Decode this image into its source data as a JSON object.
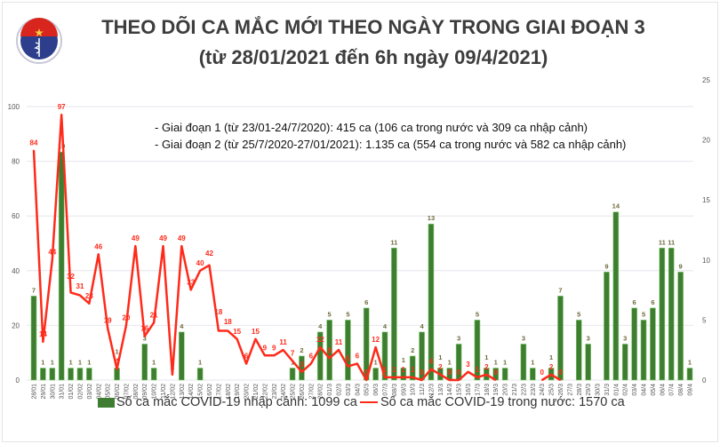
{
  "header": {
    "title_line1": "THEO DÕI CA MẮC MỚI THEO NGÀY TRONG GIAI ĐOẠN 3",
    "title_line2": "(từ 28/01/2021 đến 6h ngày 09/4/2021)",
    "logo_text": "BỘ Y TẾ MINISTRY OF HEALTH"
  },
  "notes": [
    "- Giai đoạn 1 (từ 23/01-24/7/2020): 415 ca (106 ca trong nước và 309 ca nhập cảnh)",
    "- Giai đoạn 2 (từ 25/7/2020-27/01/2021): 1.135 ca (554 ca trong nước và 582 ca nhập cảnh)"
  ],
  "legend": {
    "imported": "Số ca mắc COVID-19 nhập cảnh: 1099 ca",
    "domestic": "Số ca mắc COVID-19 trong nước: 1570 ca"
  },
  "colors": {
    "imported": "#3f7d32",
    "domestic": "#ff2a1a",
    "imported_label": "#6e6a3c",
    "grid": "#e6e6ee"
  },
  "chart_data": {
    "type": "bar+line",
    "title": "THEO DÕI CA MẮC MỚI THEO NGÀY TRONG GIAI ĐOẠN 3",
    "grid": true,
    "legend_position": "bottom",
    "left_axis": {
      "ylim": [
        0,
        100
      ],
      "ticks": [
        "0",
        "20",
        "40",
        "60",
        "80",
        "100"
      ]
    },
    "right_axis": {
      "ylim": [
        0,
        25
      ],
      "ticks": [
        "0",
        "5",
        "10",
        "15",
        "20",
        "25"
      ]
    },
    "categories": [
      "28/01",
      "29/01",
      "30/01",
      "31/01",
      "01/02",
      "02/02",
      "03/02",
      "04/02",
      "05/02",
      "06/02",
      "07/02",
      "08/02",
      "09/02",
      "10/02",
      "11/02",
      "12/02",
      "13/02",
      "14/02",
      "15/02",
      "16/02",
      "17/02",
      "18/02",
      "19/02",
      "20/02",
      "21/02",
      "22/02",
      "23/02",
      "24/02",
      "25/02",
      "26/02",
      "27/02",
      "28/02",
      "01/3",
      "02/3",
      "03/3",
      "04/3",
      "05/3",
      "06/3",
      "07/3",
      "08/3",
      "09/3",
      "10/3",
      "11/3",
      "12/3",
      "13/3",
      "14/3",
      "15/3",
      "16/3",
      "17/3",
      "18/3",
      "19/3",
      "20/3",
      "21/3",
      "22/3",
      "23/3",
      "24/3",
      "25/3",
      "26/3",
      "27/3",
      "28/3",
      "29/3",
      "30/3",
      "31/3",
      "01/4",
      "02/4",
      "03/4",
      "04/4",
      "05/4",
      "06/4",
      "07/4",
      "08/4",
      "09/4"
    ],
    "series": [
      {
        "name": "Số ca mắc COVID-19 nhập cảnh: 1099 ca",
        "type": "bar",
        "axis": "right",
        "values": [
          7,
          1,
          1,
          19,
          1,
          1,
          1,
          0,
          0,
          1,
          0,
          0,
          3,
          1,
          0,
          0,
          4,
          0,
          1,
          0,
          0,
          0,
          0,
          0,
          0,
          0,
          0,
          0,
          1,
          2,
          0,
          4,
          5,
          0,
          5,
          0,
          6,
          1,
          4,
          11,
          1,
          2,
          4,
          13,
          1,
          1,
          3,
          0,
          5,
          1,
          1,
          1,
          0,
          3,
          1,
          0,
          1,
          7,
          0,
          5,
          3,
          0,
          9,
          14,
          3,
          6,
          5,
          6,
          11,
          11,
          9,
          1
        ]
      },
      {
        "name": "Số ca mắc COVID-19 trong nước: 1570 ca",
        "type": "line",
        "axis": "left",
        "values": [
          84,
          14,
          44,
          97,
          32,
          31,
          28,
          46,
          19,
          4,
          20,
          49,
          16,
          21,
          49,
          2,
          49,
          33,
          40,
          42,
          18,
          18,
          15,
          6,
          15,
          9,
          9,
          11,
          7,
          3,
          6,
          12,
          8,
          11,
          5,
          6,
          0,
          12,
          1,
          1,
          1,
          1,
          0,
          4,
          2,
          0,
          0,
          3,
          1,
          2,
          0,
          null,
          null,
          null,
          null,
          0,
          2,
          0,
          null,
          null,
          null,
          null,
          null,
          null,
          null,
          null,
          null,
          null,
          null,
          null,
          null,
          null
        ]
      }
    ]
  }
}
